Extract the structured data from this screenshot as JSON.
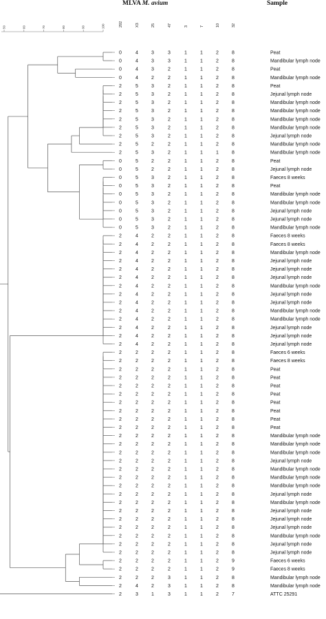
{
  "title_prefix": "MLVA",
  "title_species": "M. avium",
  "sample_header": "Sample",
  "scale_ticks": [
    "50",
    "60",
    "70",
    "80",
    "90",
    "100"
  ],
  "loci": [
    "292",
    "X3",
    "25",
    "47",
    "3",
    "7",
    "10",
    "32"
  ],
  "rows": [
    {
      "v": [
        "0",
        "4",
        "3",
        "3",
        "1",
        "1",
        "2",
        "8"
      ],
      "s": "Peat"
    },
    {
      "v": [
        "0",
        "4",
        "3",
        "3",
        "1",
        "1",
        "2",
        "8"
      ],
      "s": "Mandibular lymph node"
    },
    {
      "v": [
        "0",
        "4",
        "3",
        "2",
        "1",
        "1",
        "2",
        "8"
      ],
      "s": "Peat"
    },
    {
      "v": [
        "0",
        "4",
        "2",
        "2",
        "1",
        "1",
        "2",
        "8"
      ],
      "s": "Mandibular lymph node"
    },
    {
      "v": [
        "2",
        "5",
        "3",
        "2",
        "1",
        "1",
        "2",
        "8"
      ],
      "s": "Peat"
    },
    {
      "v": [
        "2",
        "5",
        "3",
        "2",
        "1",
        "1",
        "2",
        "8"
      ],
      "s": "Jejunal lymph node"
    },
    {
      "v": [
        "2",
        "5",
        "3",
        "2",
        "1",
        "1",
        "2",
        "8"
      ],
      "s": "Mandibular lymph node"
    },
    {
      "v": [
        "2",
        "5",
        "3",
        "2",
        "1",
        "1",
        "2",
        "8"
      ],
      "s": "Mandibular lymph node"
    },
    {
      "v": [
        "2",
        "5",
        "3",
        "2",
        "1",
        "1",
        "2",
        "8"
      ],
      "s": "Mandibular lymph node"
    },
    {
      "v": [
        "2",
        "5",
        "3",
        "2",
        "1",
        "1",
        "2",
        "8"
      ],
      "s": "Mandibular lymph node"
    },
    {
      "v": [
        "2",
        "5",
        "3",
        "2",
        "1",
        "1",
        "2",
        "8"
      ],
      "s": "Jejunal lymph node"
    },
    {
      "v": [
        "2",
        "5",
        "2",
        "2",
        "1",
        "1",
        "2",
        "8"
      ],
      "s": "Mandibular lymph node"
    },
    {
      "v": [
        "2",
        "5",
        "3",
        "2",
        "1",
        "1",
        "1",
        "8"
      ],
      "s": "Mandibular lymph node"
    },
    {
      "v": [
        "0",
        "5",
        "2",
        "2",
        "1",
        "1",
        "2",
        "8"
      ],
      "s": "Peat"
    },
    {
      "v": [
        "0",
        "5",
        "2",
        "2",
        "1",
        "1",
        "2",
        "8"
      ],
      "s": "Jejunal lymph node"
    },
    {
      "v": [
        "0",
        "5",
        "3",
        "2",
        "1",
        "1",
        "2",
        "8"
      ],
      "s": "Faeces 8 weeks"
    },
    {
      "v": [
        "0",
        "5",
        "3",
        "2",
        "1",
        "1",
        "2",
        "8"
      ],
      "s": "Peat"
    },
    {
      "v": [
        "0",
        "5",
        "3",
        "2",
        "1",
        "1",
        "2",
        "8"
      ],
      "s": "Mandibular lymph node"
    },
    {
      "v": [
        "0",
        "5",
        "3",
        "2",
        "1",
        "1",
        "2",
        "8"
      ],
      "s": "Mandibular lymph node"
    },
    {
      "v": [
        "0",
        "5",
        "3",
        "2",
        "1",
        "1",
        "2",
        "8"
      ],
      "s": "Jejunal lymph node"
    },
    {
      "v": [
        "0",
        "5",
        "3",
        "2",
        "1",
        "1",
        "2",
        "8"
      ],
      "s": "Jejunal lymph node"
    },
    {
      "v": [
        "0",
        "5",
        "3",
        "2",
        "1",
        "1",
        "2",
        "8"
      ],
      "s": "Mandibular lymph node"
    },
    {
      "v": [
        "2",
        "4",
        "2",
        "2",
        "1",
        "1",
        "2",
        "8"
      ],
      "s": "Faeces 8 weeks"
    },
    {
      "v": [
        "2",
        "4",
        "2",
        "2",
        "1",
        "1",
        "2",
        "8"
      ],
      "s": "Faeces 8 weeks"
    },
    {
      "v": [
        "2",
        "4",
        "2",
        "2",
        "1",
        "1",
        "2",
        "8"
      ],
      "s": "Mandibular lymph node"
    },
    {
      "v": [
        "2",
        "4",
        "2",
        "2",
        "1",
        "1",
        "2",
        "8"
      ],
      "s": "Jejunal lymph node"
    },
    {
      "v": [
        "2",
        "4",
        "2",
        "2",
        "1",
        "1",
        "2",
        "8"
      ],
      "s": "Jejunal lymph node"
    },
    {
      "v": [
        "2",
        "4",
        "2",
        "2",
        "1",
        "1",
        "2",
        "8"
      ],
      "s": "Jejunal lymph node"
    },
    {
      "v": [
        "2",
        "4",
        "2",
        "2",
        "1",
        "1",
        "2",
        "8"
      ],
      "s": "Mandibular lymph node"
    },
    {
      "v": [
        "2",
        "4",
        "2",
        "2",
        "1",
        "1",
        "2",
        "8"
      ],
      "s": "Jejunal lymph node"
    },
    {
      "v": [
        "2",
        "4",
        "2",
        "2",
        "1",
        "1",
        "2",
        "8"
      ],
      "s": "Jejunal lymph node"
    },
    {
      "v": [
        "2",
        "4",
        "2",
        "2",
        "1",
        "1",
        "2",
        "8"
      ],
      "s": "Mandibular lymph node"
    },
    {
      "v": [
        "2",
        "4",
        "2",
        "2",
        "1",
        "1",
        "2",
        "8"
      ],
      "s": "Mandibular lymph node"
    },
    {
      "v": [
        "2",
        "4",
        "2",
        "2",
        "1",
        "1",
        "2",
        "8"
      ],
      "s": "Jejunal lymph node"
    },
    {
      "v": [
        "2",
        "4",
        "2",
        "2",
        "1",
        "1",
        "2",
        "8"
      ],
      "s": "Jejunal lymph node"
    },
    {
      "v": [
        "2",
        "4",
        "2",
        "2",
        "1",
        "1",
        "2",
        "8"
      ],
      "s": "Jejunal lymph node"
    },
    {
      "v": [
        "2",
        "2",
        "2",
        "2",
        "1",
        "1",
        "2",
        "8"
      ],
      "s": "Faeces 6 weeks"
    },
    {
      "v": [
        "2",
        "2",
        "2",
        "2",
        "1",
        "1",
        "2",
        "8"
      ],
      "s": "Faeces 8 weeks"
    },
    {
      "v": [
        "2",
        "2",
        "2",
        "2",
        "1",
        "1",
        "2",
        "8"
      ],
      "s": "Peat"
    },
    {
      "v": [
        "2",
        "2",
        "2",
        "2",
        "1",
        "1",
        "2",
        "8"
      ],
      "s": "Peat"
    },
    {
      "v": [
        "2",
        "2",
        "2",
        "2",
        "1",
        "1",
        "2",
        "8"
      ],
      "s": "Peat"
    },
    {
      "v": [
        "2",
        "2",
        "2",
        "2",
        "1",
        "1",
        "2",
        "8"
      ],
      "s": "Peat"
    },
    {
      "v": [
        "2",
        "2",
        "2",
        "2",
        "1",
        "1",
        "2",
        "8"
      ],
      "s": "Peat"
    },
    {
      "v": [
        "2",
        "2",
        "2",
        "2",
        "1",
        "1",
        "2",
        "8"
      ],
      "s": "Peat"
    },
    {
      "v": [
        "2",
        "2",
        "2",
        "2",
        "1",
        "1",
        "2",
        "8"
      ],
      "s": "Peat"
    },
    {
      "v": [
        "2",
        "2",
        "2",
        "2",
        "1",
        "1",
        "2",
        "8"
      ],
      "s": "Peat"
    },
    {
      "v": [
        "2",
        "2",
        "2",
        "2",
        "1",
        "1",
        "2",
        "8"
      ],
      "s": "Mandibular lymph node"
    },
    {
      "v": [
        "2",
        "2",
        "2",
        "2",
        "1",
        "1",
        "2",
        "8"
      ],
      "s": "Mandibular lymph node"
    },
    {
      "v": [
        "2",
        "2",
        "2",
        "2",
        "1",
        "1",
        "2",
        "8"
      ],
      "s": "Mandibular lymph node"
    },
    {
      "v": [
        "2",
        "2",
        "2",
        "2",
        "1",
        "1",
        "2",
        "8"
      ],
      "s": "Jejunal lymph node"
    },
    {
      "v": [
        "2",
        "2",
        "2",
        "2",
        "1",
        "1",
        "2",
        "8"
      ],
      "s": "Mandibular lymph node"
    },
    {
      "v": [
        "2",
        "2",
        "2",
        "2",
        "1",
        "1",
        "2",
        "8"
      ],
      "s": "Mandibular lymph node"
    },
    {
      "v": [
        "2",
        "2",
        "2",
        "2",
        "1",
        "1",
        "2",
        "8"
      ],
      "s": "Mandibular lymph node"
    },
    {
      "v": [
        "2",
        "2",
        "2",
        "2",
        "1",
        "1",
        "2",
        "8"
      ],
      "s": "Jejunal lymph node"
    },
    {
      "v": [
        "2",
        "2",
        "2",
        "2",
        "1",
        "1",
        "2",
        "8"
      ],
      "s": "Mandibular lymph node"
    },
    {
      "v": [
        "2",
        "2",
        "2",
        "2",
        "1",
        "1",
        "2",
        "8"
      ],
      "s": "Jejunal lymph node"
    },
    {
      "v": [
        "2",
        "2",
        "2",
        "2",
        "1",
        "1",
        "2",
        "8"
      ],
      "s": "Jejunal lymph node"
    },
    {
      "v": [
        "2",
        "2",
        "2",
        "2",
        "1",
        "1",
        "2",
        "8"
      ],
      "s": "Jejunal lymph node"
    },
    {
      "v": [
        "2",
        "2",
        "2",
        "2",
        "1",
        "1",
        "2",
        "8"
      ],
      "s": "Mandibular lymph node"
    },
    {
      "v": [
        "2",
        "2",
        "2",
        "2",
        "1",
        "1",
        "2",
        "8"
      ],
      "s": "Jejunal lymph node"
    },
    {
      "v": [
        "2",
        "2",
        "2",
        "2",
        "1",
        "1",
        "2",
        "8"
      ],
      "s": "Jejunal lymph node"
    },
    {
      "v": [
        "2",
        "2",
        "2",
        "2",
        "1",
        "1",
        "2",
        "9"
      ],
      "s": "Faeces 6 weeks"
    },
    {
      "v": [
        "2",
        "2",
        "2",
        "2",
        "1",
        "1",
        "2",
        "9"
      ],
      "s": "Faeces 8 weeks"
    },
    {
      "v": [
        "2",
        "2",
        "2",
        "3",
        "1",
        "1",
        "2",
        "8"
      ],
      "s": "Mandibular lymph node"
    },
    {
      "v": [
        "2",
        "4",
        "2",
        "3",
        "1",
        "1",
        "2",
        "8"
      ],
      "s": "Mandibular lymph node"
    },
    {
      "v": [
        "2",
        "3",
        "1",
        "3",
        "1",
        "1",
        "2",
        "7"
      ],
      "s": "ATTC 25291"
    }
  ],
  "dendrogram_merges": [
    {
      "a": 0,
      "b": 1,
      "sim": 100
    },
    {
      "a": 2,
      "b": 3,
      "sim": 86
    },
    {
      "a": "m0",
      "b": "m1",
      "sim": 77
    },
    {
      "a": 4,
      "b": 5,
      "sim": 100
    },
    {
      "a": "m3",
      "b": 6,
      "sim": 100
    },
    {
      "a": "m4",
      "b": 7,
      "sim": 100
    },
    {
      "a": "m5",
      "b": 8,
      "sim": 100
    },
    {
      "a": "m6",
      "b": 9,
      "sim": 100
    },
    {
      "a": "m7",
      "b": 10,
      "sim": 100
    },
    {
      "a": "m8",
      "b": 11,
      "sim": 88
    },
    {
      "a": "m9",
      "b": 12,
      "sim": 84
    },
    {
      "a": 13,
      "b": 14,
      "sim": 100
    },
    {
      "a": 15,
      "b": 16,
      "sim": 100
    },
    {
      "a": "m12",
      "b": 17,
      "sim": 100
    },
    {
      "a": "m13",
      "b": 18,
      "sim": 100
    },
    {
      "a": "m14",
      "b": 19,
      "sim": 100
    },
    {
      "a": "m15",
      "b": 20,
      "sim": 100
    },
    {
      "a": "m16",
      "b": 21,
      "sim": 100
    },
    {
      "a": "m11",
      "b": "m17",
      "sim": 88
    },
    {
      "a": "m10",
      "b": "m18",
      "sim": 72
    },
    {
      "a": "m2",
      "b": "m19",
      "sim": 62
    },
    {
      "a": 22,
      "b": 23,
      "sim": 100
    },
    {
      "a": "m21",
      "b": 24,
      "sim": 100
    },
    {
      "a": "m22",
      "b": 25,
      "sim": 100
    },
    {
      "a": "m23",
      "b": 26,
      "sim": 100
    },
    {
      "a": "m24",
      "b": 27,
      "sim": 100
    },
    {
      "a": "m25",
      "b": 28,
      "sim": 100
    },
    {
      "a": "m26",
      "b": 29,
      "sim": 100
    },
    {
      "a": "m27",
      "b": 30,
      "sim": 100
    },
    {
      "a": "m28",
      "b": 31,
      "sim": 100
    },
    {
      "a": "m29",
      "b": 32,
      "sim": 100
    },
    {
      "a": "m30",
      "b": 33,
      "sim": 100
    },
    {
      "a": "m31",
      "b": 34,
      "sim": 100
    },
    {
      "a": "m32",
      "b": 35,
      "sim": 100
    },
    {
      "a": 36,
      "b": 37,
      "sim": 100
    },
    {
      "a": "m34",
      "b": 38,
      "sim": 100
    },
    {
      "a": "m35",
      "b": 39,
      "sim": 100
    },
    {
      "a": "m36",
      "b": 40,
      "sim": 100
    },
    {
      "a": "m37",
      "b": 41,
      "sim": 100
    },
    {
      "a": "m38",
      "b": 42,
      "sim": 100
    },
    {
      "a": "m39",
      "b": 43,
      "sim": 100
    },
    {
      "a": "m40",
      "b": 44,
      "sim": 100
    },
    {
      "a": "m41",
      "b": 45,
      "sim": 100
    },
    {
      "a": "m42",
      "b": 46,
      "sim": 100
    },
    {
      "a": "m43",
      "b": 47,
      "sim": 100
    },
    {
      "a": "m44",
      "b": 48,
      "sim": 100
    },
    {
      "a": "m45",
      "b": 49,
      "sim": 100
    },
    {
      "a": "m46",
      "b": 50,
      "sim": 100
    },
    {
      "a": "m47",
      "b": 51,
      "sim": 100
    },
    {
      "a": "m48",
      "b": 52,
      "sim": 100
    },
    {
      "a": "m49",
      "b": 53,
      "sim": 100
    },
    {
      "a": "m50",
      "b": 54,
      "sim": 100
    },
    {
      "a": "m51",
      "b": 55,
      "sim": 100
    },
    {
      "a": "m52",
      "b": 56,
      "sim": 100
    },
    {
      "a": "m53",
      "b": 57,
      "sim": 100
    },
    {
      "a": "m54",
      "b": 58,
      "sim": 100
    },
    {
      "a": "m55",
      "b": 59,
      "sim": 100
    },
    {
      "a": "m56",
      "b": 60,
      "sim": 100
    },
    {
      "a": 61,
      "b": 62,
      "sim": 100
    },
    {
      "a": "m57",
      "b": "m58",
      "sim": 88
    },
    {
      "a": 63,
      "b": 64,
      "sim": 88
    },
    {
      "a": "m59",
      "b": "m60",
      "sim": 81
    },
    {
      "a": "m33",
      "b": "m61",
      "sim": 53
    },
    {
      "a": "m20",
      "b": "m62",
      "sim": 52
    },
    {
      "a": "m63",
      "b": 65,
      "sim": 41
    }
  ],
  "colors": {
    "line": "#555555",
    "text": "#111111"
  }
}
